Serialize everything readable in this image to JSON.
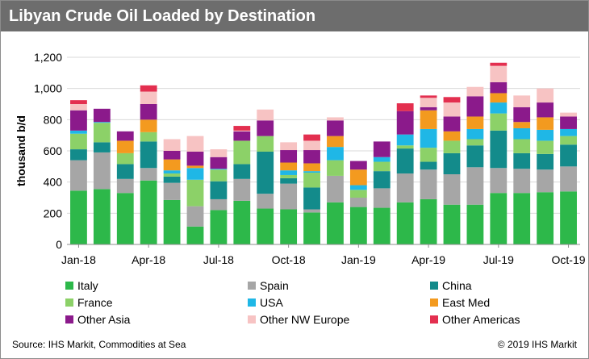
{
  "title": "Libyan Crude Oil Loaded by Destination",
  "footer": {
    "source": "IHS Markit, Commodities at Sea",
    "source_label": "Source: IHS Markit, Commodities at Sea",
    "copyright": "© 2019 IHS Markit"
  },
  "chart_data": {
    "type": "bar",
    "stacked": true,
    "ylabel": "thousand b/d",
    "xlabel": "",
    "ylim": [
      0,
      1200
    ],
    "yticks": [
      0,
      200,
      400,
      600,
      800,
      1000,
      1200
    ],
    "ytick_labels": [
      "0",
      "200",
      "400",
      "600",
      "800",
      "1,000",
      "1,200"
    ],
    "grid": true,
    "legend": "bottom",
    "categories": [
      "Jan-18",
      "Feb-18",
      "Mar-18",
      "Apr-18",
      "May-18",
      "Jun-18",
      "Jul-18",
      "Aug-18",
      "Sep-18",
      "Oct-18",
      "Nov-18",
      "Dec-18",
      "Jan-19",
      "Feb-19",
      "Mar-19",
      "Apr-19",
      "May-19",
      "Jun-19",
      "Jul-19",
      "Aug-19",
      "Sep-19",
      "Oct-19"
    ],
    "xtick_labels": [
      "Jan-18",
      "Apr-18",
      "Jul-18",
      "Oct-18",
      "Jan-19",
      "Apr-19",
      "Jul-19",
      "Oct-19"
    ],
    "series": [
      {
        "name": "Italy",
        "color": "#2db84a",
        "values": [
          345,
          355,
          330,
          410,
          285,
          115,
          220,
          280,
          230,
          225,
          205,
          270,
          240,
          235,
          270,
          290,
          255,
          255,
          330,
          330,
          335,
          340
        ]
      },
      {
        "name": "Spain",
        "color": "#a6a6a6",
        "values": [
          195,
          235,
          90,
          80,
          110,
          130,
          70,
          140,
          95,
          165,
          20,
          170,
          60,
          125,
          185,
          190,
          195,
          240,
          160,
          155,
          145,
          160
        ]
      },
      {
        "name": "China",
        "color": "#138b8b",
        "values": [
          70,
          65,
          95,
          170,
          40,
          0,
          115,
          95,
          270,
          35,
          140,
          0,
          0,
          110,
          160,
          50,
          135,
          140,
          240,
          100,
          100,
          140
        ]
      },
      {
        "name": "France",
        "color": "#8cd168",
        "values": [
          100,
          125,
          70,
          60,
          20,
          170,
          75,
          150,
          100,
          20,
          95,
          100,
          50,
          60,
          20,
          90,
          80,
          40,
          110,
          90,
          85,
          55
        ]
      },
      {
        "name": "USA",
        "color": "#1fb7e6",
        "values": [
          20,
          5,
          0,
          0,
          20,
          75,
          5,
          0,
          0,
          30,
          10,
          85,
          30,
          30,
          70,
          120,
          0,
          65,
          70,
          70,
          70,
          45
        ]
      },
      {
        "name": "East Med",
        "color": "#f39a1f",
        "values": [
          0,
          0,
          80,
          80,
          70,
          15,
          0,
          0,
          0,
          50,
          50,
          70,
          100,
          0,
          0,
          120,
          60,
          80,
          60,
          40,
          80,
          0
        ]
      },
      {
        "name": "Other Asia",
        "color": "#8b1a8b",
        "values": [
          130,
          85,
          60,
          100,
          55,
          90,
          75,
          60,
          100,
          80,
          85,
          100,
          55,
          100,
          150,
          20,
          95,
          130,
          70,
          95,
          95,
          80
        ]
      },
      {
        "name": "Other NW Europe",
        "color": "#f7c3c3",
        "values": [
          40,
          0,
          0,
          80,
          75,
          100,
          50,
          5,
          70,
          50,
          60,
          20,
          0,
          0,
          0,
          60,
          90,
          60,
          105,
          75,
          90,
          25
        ]
      },
      {
        "name": "Other Americas",
        "color": "#e32f4f",
        "values": [
          25,
          0,
          0,
          40,
          0,
          0,
          0,
          30,
          0,
          0,
          40,
          0,
          0,
          0,
          50,
          15,
          35,
          0,
          20,
          0,
          0,
          0
        ]
      }
    ]
  }
}
